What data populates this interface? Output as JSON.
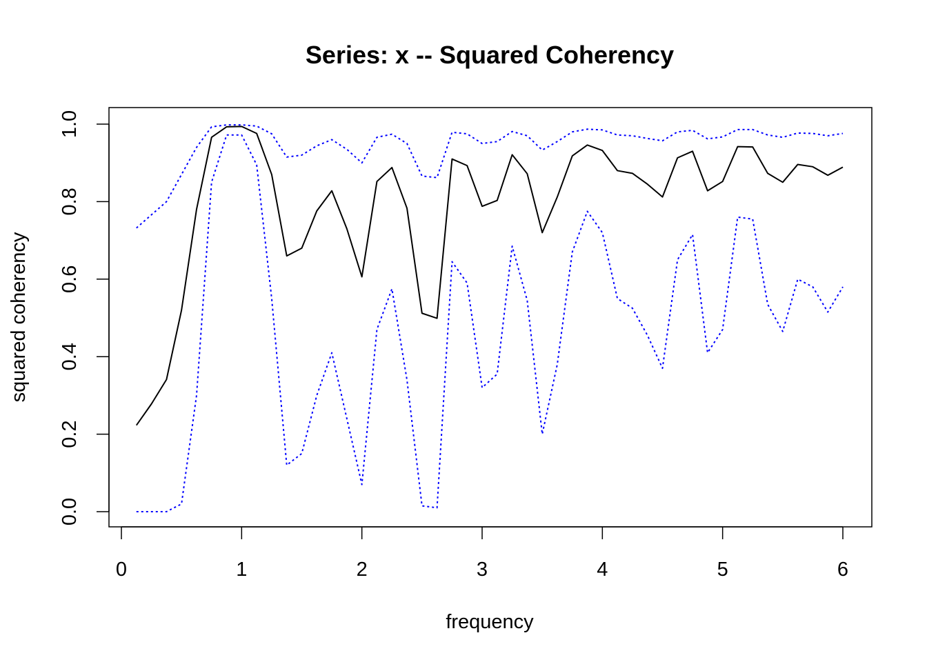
{
  "chart_data": {
    "type": "line",
    "title": "Series: x --  Squared Coherency",
    "xlabel": "frequency",
    "ylabel": "squared coherency",
    "xlim": [
      0,
      6
    ],
    "ylim": [
      0,
      1
    ],
    "xticks": [
      "0",
      "1",
      "2",
      "3",
      "4",
      "5",
      "6"
    ],
    "yticks": [
      "0.0",
      "0.2",
      "0.4",
      "0.6",
      "0.8",
      "1.0"
    ],
    "grid": false,
    "x": [
      0.125,
      0.25,
      0.375,
      0.5,
      0.625,
      0.75,
      0.875,
      1.0,
      1.125,
      1.25,
      1.375,
      1.5,
      1.625,
      1.75,
      1.875,
      2.0,
      2.125,
      2.25,
      2.375,
      2.5,
      2.625,
      2.75,
      2.875,
      3.0,
      3.125,
      3.25,
      3.375,
      3.5,
      3.625,
      3.75,
      3.875,
      4.0,
      4.125,
      4.25,
      4.375,
      4.5,
      4.625,
      4.75,
      4.875,
      5.0,
      5.125,
      5.25,
      5.375,
      5.5,
      5.625,
      5.75,
      5.875,
      6.0
    ],
    "series": [
      {
        "role": "estimate",
        "color": "#000000",
        "line_style": "solid",
        "values": [
          0.223,
          0.278,
          0.341,
          0.52,
          0.78,
          0.966,
          0.993,
          0.994,
          0.976,
          0.87,
          0.66,
          0.68,
          0.776,
          0.828,
          0.73,
          0.606,
          0.852,
          0.888,
          0.783,
          0.512,
          0.499,
          0.91,
          0.893,
          0.788,
          0.803,
          0.921,
          0.872,
          0.72,
          0.812,
          0.918,
          0.946,
          0.932,
          0.88,
          0.873,
          0.845,
          0.812,
          0.913,
          0.93,
          0.828,
          0.852,
          0.942,
          0.941,
          0.873,
          0.85,
          0.896,
          0.89,
          0.868,
          0.889
        ]
      },
      {
        "role": "upper",
        "color": "#0000FF",
        "line_style": "dotted",
        "values": [
          0.732,
          0.766,
          0.8,
          0.87,
          0.94,
          0.993,
          0.998,
          0.998,
          0.995,
          0.975,
          0.915,
          0.92,
          0.944,
          0.96,
          0.935,
          0.9,
          0.966,
          0.974,
          0.95,
          0.866,
          0.862,
          0.979,
          0.975,
          0.95,
          0.955,
          0.981,
          0.97,
          0.933,
          0.955,
          0.98,
          0.987,
          0.985,
          0.972,
          0.97,
          0.963,
          0.957,
          0.98,
          0.984,
          0.962,
          0.967,
          0.986,
          0.986,
          0.972,
          0.966,
          0.977,
          0.976,
          0.97,
          0.976
        ]
      },
      {
        "role": "lower",
        "color": "#0000FF",
        "line_style": "dotted",
        "values": [
          0.0,
          0.0,
          0.0,
          0.02,
          0.3,
          0.85,
          0.972,
          0.972,
          0.895,
          0.55,
          0.12,
          0.15,
          0.3,
          0.41,
          0.24,
          0.07,
          0.47,
          0.575,
          0.34,
          0.015,
          0.01,
          0.645,
          0.59,
          0.32,
          0.355,
          0.685,
          0.545,
          0.2,
          0.38,
          0.67,
          0.775,
          0.72,
          0.55,
          0.525,
          0.455,
          0.37,
          0.65,
          0.715,
          0.41,
          0.47,
          0.76,
          0.755,
          0.535,
          0.465,
          0.6,
          0.58,
          0.515,
          0.58
        ]
      }
    ]
  }
}
